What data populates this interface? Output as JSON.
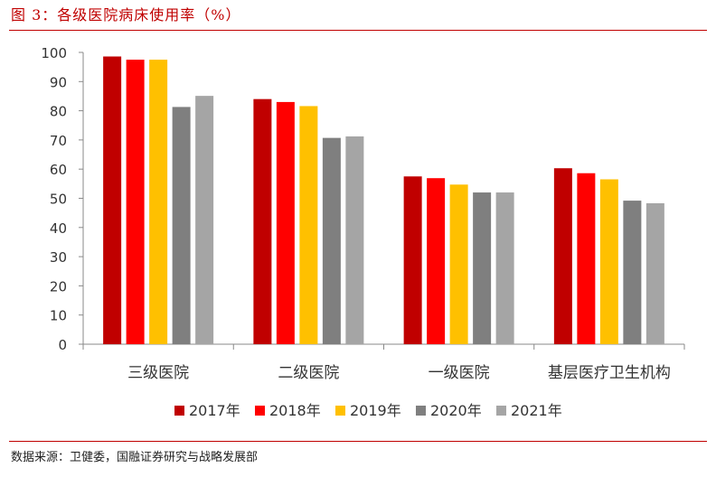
{
  "header": {
    "title": "图 3：各级医院病床使用率（%）"
  },
  "footer": {
    "source": "数据来源：卫健委，国融证券研究与战略发展部"
  },
  "chart_data": {
    "type": "bar",
    "title": "",
    "xlabel": "",
    "ylabel": "",
    "ylim": [
      0,
      100
    ],
    "yticks": [
      0,
      10,
      20,
      30,
      40,
      50,
      60,
      70,
      80,
      90,
      100
    ],
    "grid": false,
    "legend_position": "bottom",
    "categories": [
      "三级医院",
      "二级医院",
      "一级医院",
      "基层医疗卫生机构"
    ],
    "series": [
      {
        "name": "2017年",
        "color": "#c00000",
        "values": [
          98.6,
          84.0,
          57.5,
          60.3
        ]
      },
      {
        "name": "2018年",
        "color": "#ff0000",
        "values": [
          97.5,
          83.0,
          56.9,
          58.6
        ]
      },
      {
        "name": "2019年",
        "color": "#ffc000",
        "values": [
          97.5,
          81.6,
          54.7,
          56.5
        ]
      },
      {
        "name": "2020年",
        "color": "#7f7f7f",
        "values": [
          81.3,
          70.7,
          52.0,
          49.2
        ]
      },
      {
        "name": "2021年",
        "color": "#a5a5a5",
        "values": [
          85.1,
          71.2,
          52.0,
          48.3
        ]
      }
    ]
  }
}
